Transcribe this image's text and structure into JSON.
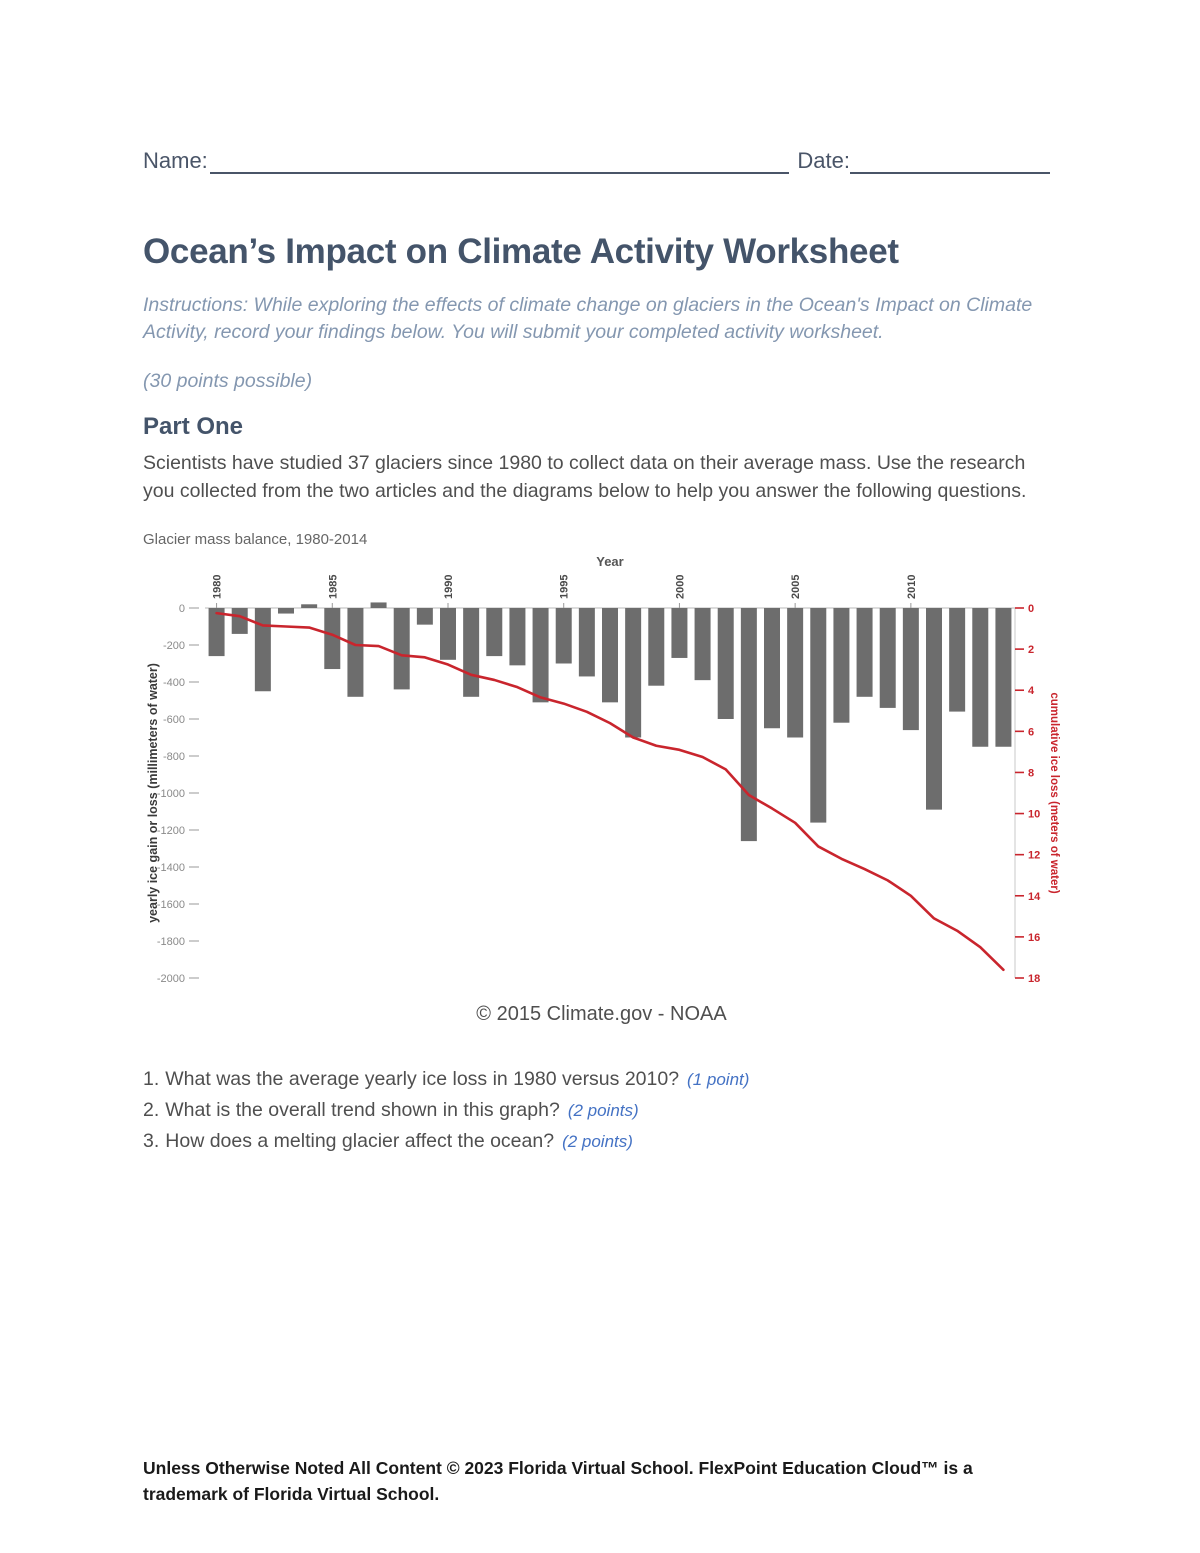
{
  "page": {
    "name_label": "Name:",
    "date_label": "Date:",
    "title": "Ocean’s Impact on Climate Activity Worksheet",
    "instructions": "Instructions: While exploring the effects of climate change on glaciers in the Ocean's Impact on Climate Activity, record your findings below. You will submit your completed activity worksheet.",
    "points_possible": "(30 points possible)",
    "part_one_heading": "Part One",
    "part_one_body": "Scientists have studied 37 glaciers since 1980 to collect data on their average mass. Use the research you collected from the two articles and the diagrams below to help you answer the following questions.",
    "chart_caption": "© 2015 Climate.gov - NOAA",
    "footer": "Unless Otherwise Noted All Content © 2023 Florida Virtual School. FlexPoint Education Cloud™ is a trademark of Florida Virtual School."
  },
  "questions": [
    {
      "number": "1.",
      "text": "What was the average yearly ice loss in 1980 versus 2010?",
      "points": "(1 point)"
    },
    {
      "number": "2.",
      "text": "What is the overall trend shown in this graph?",
      "points": "(2 points)"
    },
    {
      "number": "3.",
      "text": "How does a melting glacier affect the ocean?",
      "points": "(2 points)"
    }
  ],
  "colors": {
    "heading": "#44546a",
    "instructions": "#8497b0",
    "body_text": "#4f4f4f",
    "accent_blue": "#4472c4",
    "bar_gray": "#6d6d6d",
    "line_red": "#c9252d"
  },
  "chart_data": {
    "type": "bar",
    "title": "Glacier mass balance, 1980-2014",
    "xlabel": "Year",
    "ylabel_left": "yearly ice gain or loss (millimeters of water)",
    "ylabel_right": "cumulative ice loss (meters of water)",
    "years": [
      1980,
      1981,
      1982,
      1983,
      1984,
      1985,
      1986,
      1987,
      1988,
      1989,
      1990,
      1991,
      1992,
      1993,
      1994,
      1995,
      1996,
      1997,
      1998,
      1999,
      2000,
      2001,
      2002,
      2003,
      2004,
      2005,
      2006,
      2007,
      2008,
      2009,
      2010,
      2011,
      2012,
      2013,
      2014
    ],
    "x_tick_years": [
      1980,
      1985,
      1990,
      1995,
      2000,
      2005,
      2010
    ],
    "yearly_balance_mm": [
      -260,
      -140,
      -450,
      -30,
      20,
      -330,
      -480,
      30,
      -440,
      -90,
      -280,
      -480,
      -260,
      -310,
      -510,
      -300,
      -370,
      -510,
      -700,
      -420,
      -270,
      -390,
      -600,
      -1260,
      -650,
      -700,
      -1160,
      -620,
      -480,
      -540,
      -660,
      -1090,
      -560,
      -750,
      -750
    ],
    "cumulative_loss_m": [
      -0.25,
      -0.4,
      -0.85,
      -0.9,
      -0.95,
      -1.3,
      -1.8,
      -1.85,
      -2.3,
      -2.4,
      -2.75,
      -3.25,
      -3.5,
      -3.85,
      -4.35,
      -4.65,
      -5.05,
      -5.6,
      -6.3,
      -6.7,
      -6.9,
      -7.25,
      -7.85,
      -9.1,
      -9.75,
      -10.45,
      -11.6,
      -12.2,
      -12.7,
      -13.25,
      -14.0,
      -15.1,
      -15.7,
      -16.5,
      -17.6
    ],
    "ylim_left_mm": [
      -2000,
      0
    ],
    "ylim_right_m": [
      -18,
      0
    ],
    "left_ticks_mm": [
      0,
      -200,
      -400,
      -600,
      -800,
      -1000,
      -1200,
      -1400,
      -1600,
      -1800,
      -2000
    ],
    "right_ticks_m": [
      0,
      2,
      4,
      6,
      8,
      10,
      12,
      14,
      16,
      18
    ],
    "bar_color": "#6d6d6d",
    "line_color": "#c9252d",
    "grid": "off",
    "legend": "none"
  }
}
